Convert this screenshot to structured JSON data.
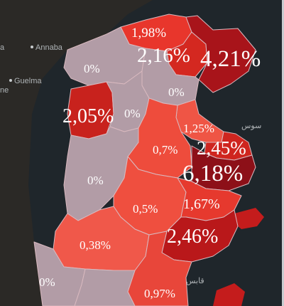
{
  "basemap": {
    "cities": [
      {
        "id": "annaba",
        "label": "Annaba"
      },
      {
        "id": "guelma",
        "label": "Guelma"
      },
      {
        "id": "edge-left",
        "label": "a"
      },
      {
        "id": "edge-left-2",
        "label": "ne"
      },
      {
        "id": "sousse",
        "label": "سوس"
      },
      {
        "id": "gabes",
        "label": "قابس"
      }
    ]
  },
  "regions": [
    {
      "id": "bizerte",
      "value": "1,98%",
      "color": "#e8362c"
    },
    {
      "id": "ariana-tunis",
      "value": "2,16%",
      "color": "#d42820"
    },
    {
      "id": "cap-bon",
      "value": "4,21%",
      "color": "#a8141a"
    },
    {
      "id": "jendouba",
      "value": "0%",
      "color": "#b29ca6"
    },
    {
      "id": "zaghouan",
      "value": "0%",
      "color": "#b29ca6"
    },
    {
      "id": "kef",
      "value": "2,05%",
      "color": "#c8221d"
    },
    {
      "id": "siliana",
      "value": "0%",
      "color": "#b29ca6"
    },
    {
      "id": "sousse",
      "value": "1,25%",
      "color": "#ef5545"
    },
    {
      "id": "kairouan",
      "value": "0,7%",
      "color": "#ee4c3c"
    },
    {
      "id": "monastir",
      "value": "2,45%",
      "color": "#cf251f"
    },
    {
      "id": "mahdia",
      "value": "6,18%",
      "color": "#8d1018"
    },
    {
      "id": "kasserine",
      "value": "0%",
      "color": "#b29ca6"
    },
    {
      "id": "sidi-bouzid",
      "value": "0,5%",
      "color": "#ef4f3f"
    },
    {
      "id": "sfax-north",
      "value": "1,67%",
      "color": "#e6392e"
    },
    {
      "id": "sfax",
      "value": "2,46%",
      "color": "#b9181a"
    },
    {
      "id": "gafsa",
      "value": "0,38%",
      "color": "#f0584a"
    },
    {
      "id": "tozeur",
      "value": "0%",
      "color": "#b29ca6"
    },
    {
      "id": "gabes",
      "value": "0,97%",
      "color": "#e8463a"
    },
    {
      "id": "kebili",
      "value": "",
      "color": "#b29ca6"
    }
  ]
}
